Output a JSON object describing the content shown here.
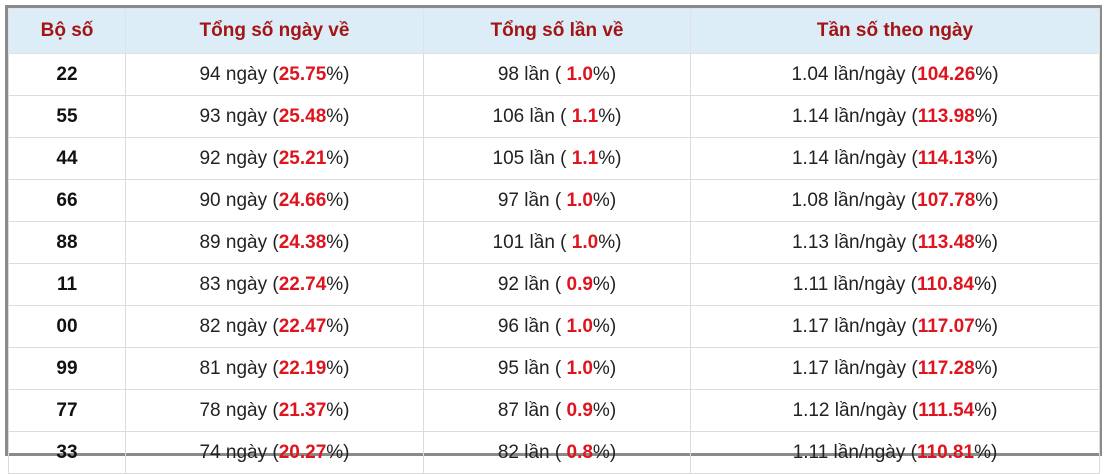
{
  "table": {
    "header": [
      "Bộ số",
      "Tổng số ngày về",
      "Tổng số lần về",
      "Tần số theo ngày"
    ],
    "rows": [
      [
        [
          "22"
        ],
        [
          "94 ngày (",
          "25.75",
          "%)"
        ],
        [
          "98 lần ( ",
          "1.0",
          "%)"
        ],
        [
          "1.04 lần/ngày (",
          "104.26",
          "%)"
        ]
      ],
      [
        [
          "55"
        ],
        [
          "93 ngày (",
          "25.48",
          "%)"
        ],
        [
          "106 lần ( ",
          "1.1",
          "%)"
        ],
        [
          "1.14 lần/ngày (",
          "113.98",
          "%)"
        ]
      ],
      [
        [
          "44"
        ],
        [
          "92 ngày (",
          "25.21",
          "%)"
        ],
        [
          "105 lần ( ",
          "1.1",
          "%)"
        ],
        [
          "1.14 lần/ngày (",
          "114.13",
          "%)"
        ]
      ],
      [
        [
          "66"
        ],
        [
          "90 ngày (",
          "24.66",
          "%)"
        ],
        [
          "97 lần ( ",
          "1.0",
          "%)"
        ],
        [
          "1.08 lần/ngày (",
          "107.78",
          "%)"
        ]
      ],
      [
        [
          "88"
        ],
        [
          "89 ngày (",
          "24.38",
          "%)"
        ],
        [
          "101 lần ( ",
          "1.0",
          "%)"
        ],
        [
          "1.13 lần/ngày (",
          "113.48",
          "%)"
        ]
      ],
      [
        [
          "11"
        ],
        [
          "83 ngày (",
          "22.74",
          "%)"
        ],
        [
          "92 lần ( ",
          "0.9",
          "%)"
        ],
        [
          "1.11 lần/ngày (",
          "110.84",
          "%)"
        ]
      ],
      [
        [
          "00"
        ],
        [
          "82 ngày (",
          "22.47",
          "%)"
        ],
        [
          "96 lần ( ",
          "1.0",
          "%)"
        ],
        [
          "1.17 lần/ngày (",
          "117.07",
          "%)"
        ]
      ],
      [
        [
          "99"
        ],
        [
          "81 ngày (",
          "22.19",
          "%)"
        ],
        [
          "95 lần ( ",
          "1.0",
          "%)"
        ],
        [
          "1.17 lần/ngày (",
          "117.28",
          "%)"
        ]
      ],
      [
        [
          "77"
        ],
        [
          "78 ngày (",
          "21.37",
          "%)"
        ],
        [
          "87 lần ( ",
          "0.9",
          "%)"
        ],
        [
          "1.12 lần/ngày (",
          "111.54",
          "%)"
        ]
      ],
      [
        [
          "33"
        ],
        [
          "74 ngày (",
          "20.27",
          "%)"
        ],
        [
          "82 lần ( ",
          "0.8",
          "%)"
        ],
        [
          "1.11 lần/ngày (",
          "110.81",
          "%)"
        ]
      ]
    ]
  }
}
